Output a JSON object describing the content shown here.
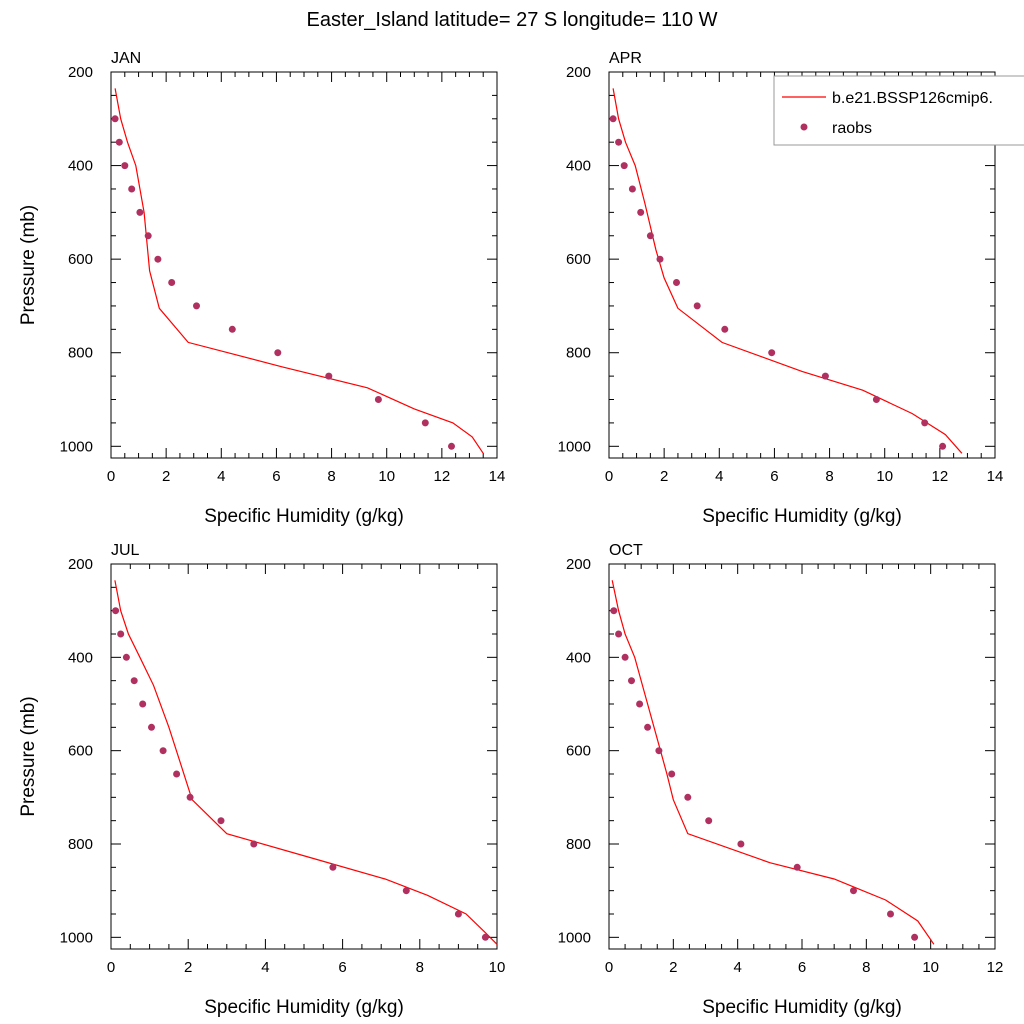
{
  "figure": {
    "title": "Easter_Island  latitude= 27 S longitude= 110 W"
  },
  "legend": {
    "model_label": "b.e21.BSSP126cmip6.",
    "obs_label": "raobs",
    "model_color": "#ff0000",
    "obs_color": "#b03060",
    "placement": "top-right, overlapping APR panel and cropped at figure edge"
  },
  "chart_data": [
    {
      "type": "line",
      "panel_title": "JAN",
      "xlabel": "Specific Humidity (g/kg)",
      "ylabel": "Pressure (mb)",
      "xlim": [
        0,
        14
      ],
      "ylim": [
        1025,
        200
      ],
      "y_inverted": true,
      "xticks": [
        0,
        2,
        4,
        6,
        8,
        10,
        12,
        14
      ],
      "yticks": [
        200,
        400,
        600,
        800,
        1000
      ],
      "series": [
        {
          "name": "b.e21.BSSP126cmip6.",
          "style": "line",
          "x": [
            0.15,
            0.35,
            0.6,
            0.9,
            1.2,
            1.4,
            1.75,
            2.8,
            6.2,
            9.3,
            11.0,
            12.4,
            13.1,
            13.5
          ],
          "y": [
            235,
            300,
            350,
            400,
            500,
            625,
            705,
            778,
            830,
            875,
            920,
            950,
            980,
            1015
          ]
        },
        {
          "name": "raobs",
          "style": "markers",
          "x": [
            0.15,
            0.3,
            0.5,
            0.75,
            1.05,
            1.35,
            1.7,
            2.2,
            3.1,
            4.4,
            6.05,
            7.9,
            9.7,
            11.4,
            12.35
          ],
          "y": [
            300,
            350,
            400,
            450,
            500,
            550,
            600,
            650,
            700,
            750,
            800,
            850,
            900,
            950,
            1000
          ]
        }
      ]
    },
    {
      "type": "line",
      "panel_title": "APR",
      "xlabel": "Specific Humidity (g/kg)",
      "ylabel": "",
      "xlim": [
        0,
        14
      ],
      "ylim": [
        1025,
        200
      ],
      "y_inverted": true,
      "xticks": [
        0,
        2,
        4,
        6,
        8,
        10,
        12,
        14
      ],
      "yticks": [
        200,
        400,
        600,
        800,
        1000
      ],
      "series": [
        {
          "name": "b.e21.BSSP126cmip6.",
          "style": "line",
          "x": [
            0.15,
            0.35,
            0.6,
            0.95,
            1.3,
            1.7,
            2.0,
            2.5,
            4.1,
            7.0,
            9.2,
            11.0,
            12.2,
            12.8
          ],
          "y": [
            235,
            300,
            350,
            400,
            480,
            580,
            640,
            705,
            778,
            840,
            880,
            930,
            975,
            1015
          ]
        },
        {
          "name": "raobs",
          "style": "markers",
          "x": [
            0.15,
            0.35,
            0.55,
            0.85,
            1.15,
            1.5,
            1.85,
            2.45,
            3.2,
            4.2,
            5.9,
            7.85,
            9.7,
            11.45,
            12.1
          ],
          "y": [
            300,
            350,
            400,
            450,
            500,
            550,
            600,
            650,
            700,
            750,
            800,
            850,
            900,
            950,
            1000
          ]
        }
      ]
    },
    {
      "type": "line",
      "panel_title": "JUL",
      "xlabel": "Specific Humidity (g/kg)",
      "ylabel": "Pressure (mb)",
      "xlim": [
        0,
        10
      ],
      "ylim": [
        1025,
        200
      ],
      "y_inverted": true,
      "xticks": [
        0,
        2,
        4,
        6,
        8,
        10
      ],
      "yticks": [
        200,
        400,
        600,
        800,
        1000
      ],
      "series": [
        {
          "name": "b.e21.BSSP126cmip6.",
          "style": "line",
          "x": [
            0.1,
            0.25,
            0.45,
            0.75,
            1.1,
            1.5,
            1.85,
            2.1,
            3.0,
            5.2,
            7.1,
            8.2,
            9.2,
            9.7,
            10.0
          ],
          "y": [
            235,
            300,
            350,
            400,
            460,
            550,
            640,
            705,
            778,
            830,
            875,
            910,
            950,
            990,
            1015
          ]
        },
        {
          "name": "raobs",
          "style": "markers",
          "x": [
            0.12,
            0.25,
            0.4,
            0.6,
            0.82,
            1.05,
            1.35,
            1.7,
            2.05,
            2.85,
            3.7,
            5.75,
            7.65,
            9.0,
            9.7
          ],
          "y": [
            300,
            350,
            400,
            450,
            500,
            550,
            600,
            650,
            700,
            750,
            800,
            850,
            900,
            950,
            1000
          ]
        }
      ]
    },
    {
      "type": "line",
      "panel_title": "OCT",
      "xlabel": "Specific Humidity (g/kg)",
      "ylabel": "",
      "xlim": [
        0,
        12
      ],
      "ylim": [
        1025,
        200
      ],
      "y_inverted": true,
      "xticks": [
        0,
        2,
        4,
        6,
        8,
        10,
        12
      ],
      "yticks": [
        200,
        400,
        600,
        800,
        1000
      ],
      "series": [
        {
          "name": "b.e21.BSSP126cmip6.",
          "style": "line",
          "x": [
            0.1,
            0.3,
            0.5,
            0.8,
            1.2,
            1.6,
            1.8,
            2.0,
            2.45,
            5.0,
            7.0,
            8.6,
            9.6,
            10.1
          ],
          "y": [
            235,
            300,
            350,
            400,
            500,
            600,
            650,
            705,
            778,
            840,
            875,
            920,
            965,
            1015
          ]
        },
        {
          "name": "raobs",
          "style": "markers",
          "x": [
            0.15,
            0.3,
            0.5,
            0.7,
            0.95,
            1.2,
            1.55,
            1.95,
            2.45,
            3.1,
            4.1,
            5.85,
            7.6,
            8.75,
            9.5
          ],
          "y": [
            300,
            350,
            400,
            450,
            500,
            550,
            600,
            650,
            700,
            750,
            800,
            850,
            900,
            950,
            1000
          ]
        }
      ]
    }
  ]
}
